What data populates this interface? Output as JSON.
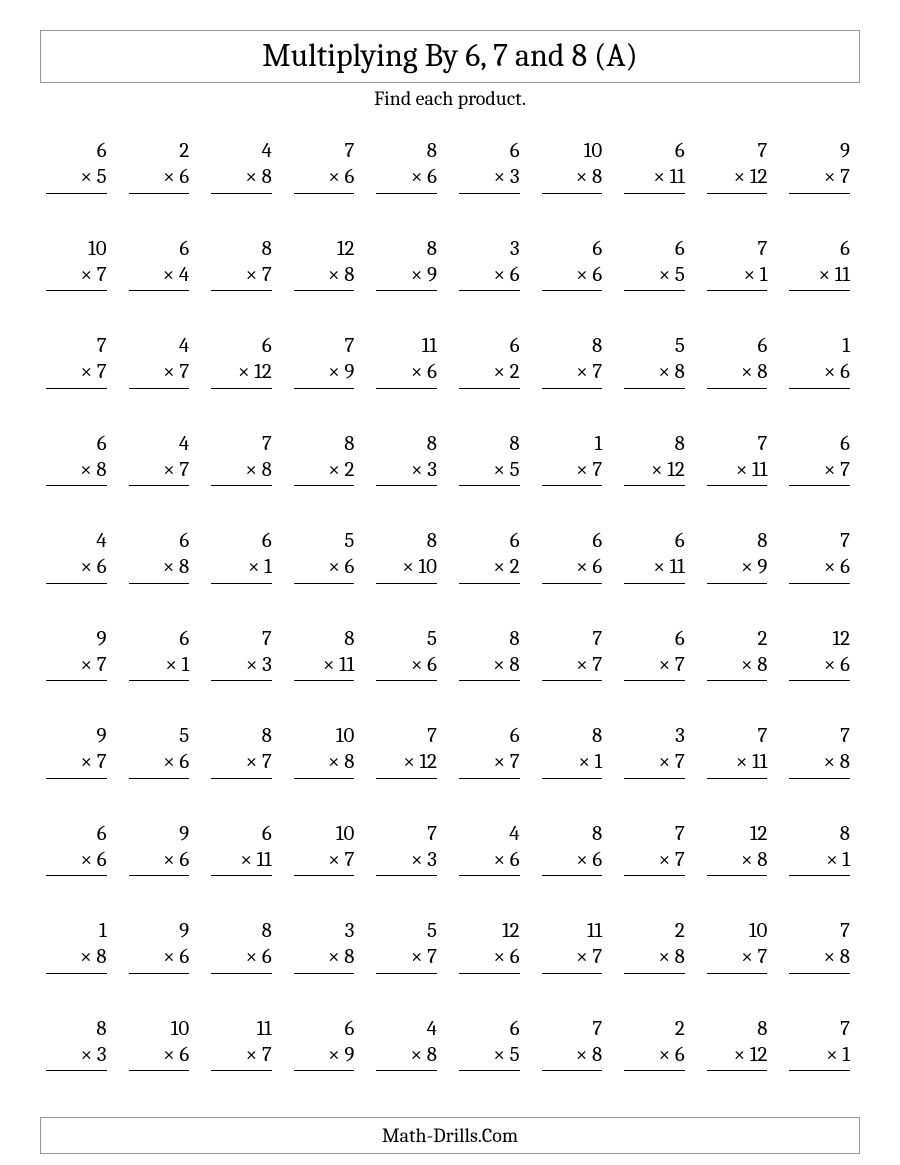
{
  "title": "Multiplying By 6, 7 and 8 (A)",
  "subtitle": "Find each product.",
  "footer": "Math-Drills.Com",
  "mult_sign": "×",
  "problems": [
    [
      [
        6,
        5
      ],
      [
        2,
        6
      ],
      [
        4,
        8
      ],
      [
        7,
        6
      ],
      [
        8,
        6
      ],
      [
        6,
        3
      ],
      [
        10,
        8
      ],
      [
        6,
        11
      ],
      [
        7,
        12
      ],
      [
        9,
        7
      ]
    ],
    [
      [
        10,
        7
      ],
      [
        6,
        4
      ],
      [
        8,
        7
      ],
      [
        12,
        8
      ],
      [
        8,
        9
      ],
      [
        3,
        6
      ],
      [
        6,
        6
      ],
      [
        6,
        5
      ],
      [
        7,
        1
      ],
      [
        6,
        11
      ]
    ],
    [
      [
        7,
        7
      ],
      [
        4,
        7
      ],
      [
        6,
        12
      ],
      [
        7,
        9
      ],
      [
        11,
        6
      ],
      [
        6,
        2
      ],
      [
        8,
        7
      ],
      [
        5,
        8
      ],
      [
        6,
        8
      ],
      [
        1,
        6
      ]
    ],
    [
      [
        6,
        8
      ],
      [
        4,
        7
      ],
      [
        7,
        8
      ],
      [
        8,
        2
      ],
      [
        8,
        3
      ],
      [
        8,
        5
      ],
      [
        1,
        7
      ],
      [
        8,
        12
      ],
      [
        7,
        11
      ],
      [
        6,
        7
      ]
    ],
    [
      [
        4,
        6
      ],
      [
        6,
        8
      ],
      [
        6,
        1
      ],
      [
        5,
        6
      ],
      [
        8,
        10
      ],
      [
        6,
        2
      ],
      [
        6,
        6
      ],
      [
        6,
        11
      ],
      [
        8,
        9
      ],
      [
        7,
        6
      ]
    ],
    [
      [
        9,
        7
      ],
      [
        6,
        1
      ],
      [
        7,
        3
      ],
      [
        8,
        11
      ],
      [
        5,
        6
      ],
      [
        8,
        8
      ],
      [
        7,
        7
      ],
      [
        6,
        7
      ],
      [
        2,
        8
      ],
      [
        12,
        6
      ]
    ],
    [
      [
        9,
        7
      ],
      [
        5,
        6
      ],
      [
        8,
        7
      ],
      [
        10,
        8
      ],
      [
        7,
        12
      ],
      [
        6,
        7
      ],
      [
        8,
        1
      ],
      [
        3,
        7
      ],
      [
        7,
        11
      ],
      [
        7,
        8
      ]
    ],
    [
      [
        6,
        6
      ],
      [
        9,
        6
      ],
      [
        6,
        11
      ],
      [
        10,
        7
      ],
      [
        7,
        3
      ],
      [
        4,
        6
      ],
      [
        8,
        6
      ],
      [
        7,
        7
      ],
      [
        12,
        8
      ],
      [
        8,
        1
      ]
    ],
    [
      [
        1,
        8
      ],
      [
        9,
        6
      ],
      [
        8,
        6
      ],
      [
        3,
        8
      ],
      [
        5,
        7
      ],
      [
        12,
        6
      ],
      [
        11,
        7
      ],
      [
        2,
        8
      ],
      [
        10,
        7
      ],
      [
        7,
        8
      ]
    ],
    [
      [
        8,
        3
      ],
      [
        10,
        6
      ],
      [
        11,
        7
      ],
      [
        6,
        9
      ],
      [
        4,
        8
      ],
      [
        6,
        5
      ],
      [
        7,
        8
      ],
      [
        2,
        6
      ],
      [
        8,
        12
      ],
      [
        7,
        1
      ]
    ]
  ]
}
